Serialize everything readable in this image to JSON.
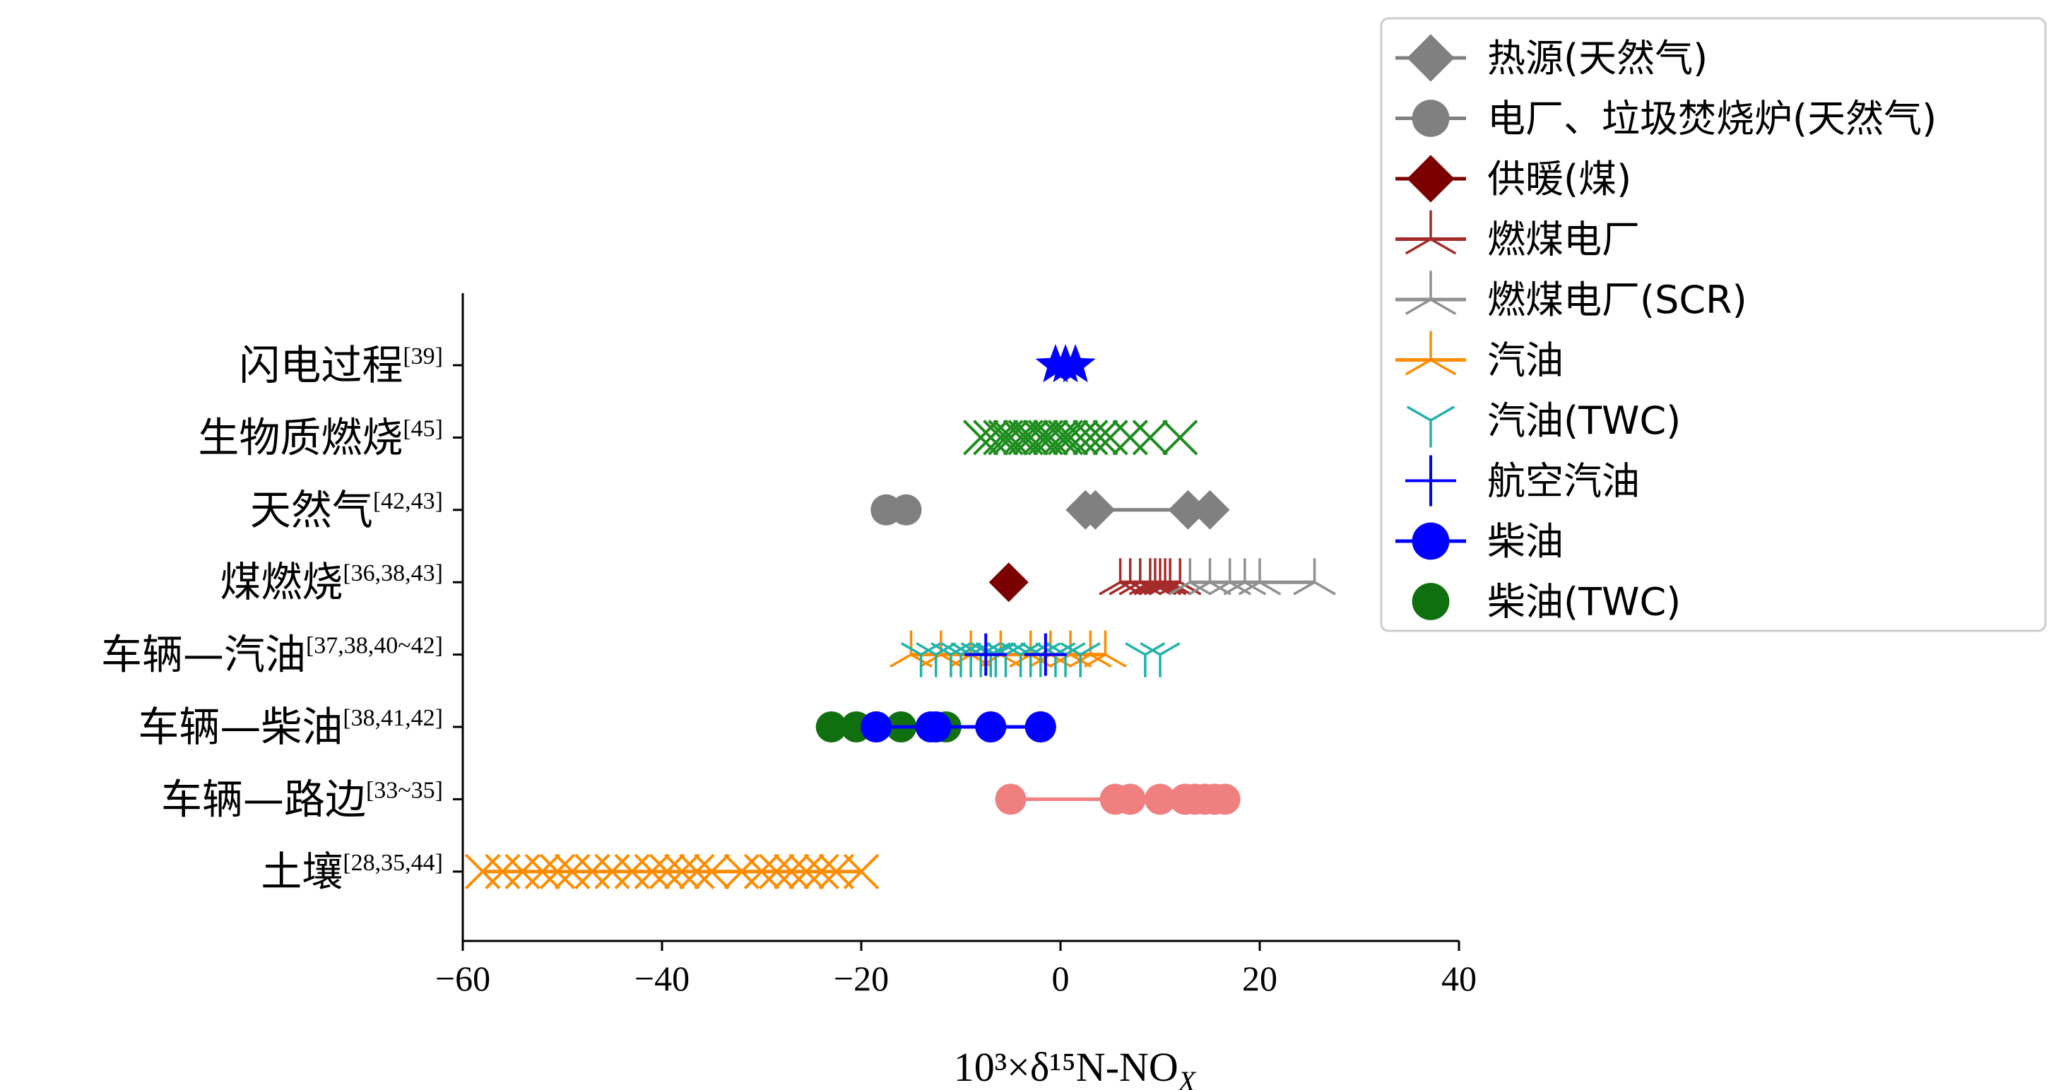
{
  "chart_data": {
    "type": "scatter",
    "xlabel": "10³×δ¹⁵N-NO",
    "xlabel_sub": "X",
    "xlim": [
      -60,
      40
    ],
    "xticks": [
      -60,
      -40,
      -20,
      0,
      20,
      40
    ],
    "xtick_labels": [
      "−60",
      "−40",
      "−20",
      "0",
      "20",
      "40"
    ],
    "categories": [
      {
        "label": "闪电过程",
        "ref": "[39]"
      },
      {
        "label": "生物质燃烧",
        "ref": "[45]"
      },
      {
        "label": "天然气",
        "ref": "[42,43]"
      },
      {
        "label": "煤燃烧",
        "ref": "[36,38,43]"
      },
      {
        "label": "车辆—汽油",
        "ref": "[37,38,40~42]"
      },
      {
        "label": "车辆—柴油",
        "ref": "[38,41,42]"
      },
      {
        "label": "车辆—路边",
        "ref": "[33~35]"
      },
      {
        "label": "土壤",
        "ref": "[28,35,44]"
      }
    ],
    "legend_position": "top-right",
    "legend": [
      {
        "label": "热源(天然气)",
        "color": "#808080",
        "marker": "diamond",
        "line": true
      },
      {
        "label": "电厂、垃圾焚烧炉(天然气)",
        "color": "#808080",
        "marker": "circle",
        "line": true
      },
      {
        "label": "供暖(煤)",
        "color": "#7b0000",
        "marker": "diamond",
        "line": true
      },
      {
        "label": "燃煤电厂",
        "color": "#a52a2a",
        "marker": "tri-star",
        "line": true
      },
      {
        "label": "燃煤电厂(SCR)",
        "color": "#909090",
        "marker": "tri-star",
        "line": true
      },
      {
        "label": "汽油",
        "color": "#ff8c00",
        "marker": "tri-star",
        "line": true
      },
      {
        "label": "汽油(TWC)",
        "color": "#20b2aa",
        "marker": "tri",
        "line": false
      },
      {
        "label": "航空汽油",
        "color": "#0000ff",
        "marker": "plus",
        "line": false
      },
      {
        "label": "柴油",
        "color": "#0000ff",
        "marker": "circle",
        "line": true
      },
      {
        "label": "柴油(TWC)",
        "color": "#107010",
        "marker": "circle",
        "line": false
      }
    ],
    "series": [
      {
        "category": "闪电过程",
        "marker": "star",
        "color": "#0000ff",
        "x": [
          -0.5,
          0.5,
          1.5
        ]
      },
      {
        "category": "生物质燃烧",
        "marker": "x",
        "color": "#1e8c1e",
        "x": [
          -8,
          -7,
          -6,
          -5.5,
          -5,
          -4,
          -3.5,
          -3,
          -2,
          -1.5,
          -1,
          0,
          0.5,
          1,
          2,
          3,
          4,
          5,
          7,
          9,
          12
        ]
      },
      {
        "category": "天然气",
        "name": "电厂、垃圾焚烧炉(天然气)",
        "marker": "circle",
        "color": "#808080",
        "line": false,
        "x": [
          -17.5,
          -15.5
        ]
      },
      {
        "category": "天然气",
        "name": "热源(天然气)",
        "marker": "diamond",
        "color": "#808080",
        "line": true,
        "x": [
          2.5,
          3.5,
          12.8,
          15
        ]
      },
      {
        "category": "煤燃烧",
        "name": "供暖(煤)",
        "marker": "diamond",
        "color": "#7b0000",
        "line": false,
        "x": [
          -5.2
        ]
      },
      {
        "category": "煤燃烧",
        "name": "燃煤电厂",
        "marker": "tri-star",
        "color": "#a52a2a",
        "line": true,
        "x": [
          6,
          7,
          8,
          9,
          9.5,
          10,
          10.5,
          11,
          12
        ]
      },
      {
        "category": "煤燃烧",
        "name": "燃煤电厂(SCR)",
        "marker": "tri-star",
        "color": "#909090",
        "line": true,
        "x": [
          13,
          15,
          17,
          18.5,
          20,
          25.5
        ]
      },
      {
        "category": "车辆—汽油",
        "name": "汽油",
        "marker": "tri-star",
        "color": "#ff8c00",
        "line": true,
        "x": [
          -15,
          -12,
          -9,
          -6,
          -3,
          -1,
          1,
          3,
          4.5
        ]
      },
      {
        "category": "车辆—汽油",
        "name": "汽油(TWC)",
        "marker": "tri",
        "color": "#20b2aa",
        "line": false,
        "x": [
          -14,
          -12.5,
          -11,
          -10,
          -9,
          -8,
          -7,
          -6.5,
          -5.5,
          -4,
          -3,
          -2,
          -0.5,
          0.5,
          2,
          8.5,
          10
        ]
      },
      {
        "category": "车辆—汽油",
        "name": "航空汽油",
        "marker": "plus",
        "color": "#0000ff",
        "line": false,
        "x": [
          -7.5,
          -1.5
        ]
      },
      {
        "category": "车辆—柴油",
        "name": "柴油(TWC)",
        "marker": "circle",
        "color": "#107010",
        "line": false,
        "x": [
          -23,
          -20.5,
          -18.5,
          -16,
          -11.5,
          -2
        ]
      },
      {
        "category": "车辆—柴油",
        "name": "柴油",
        "marker": "circle",
        "color": "#0000ff",
        "line": true,
        "x": [
          -18.5,
          -13,
          -12.5,
          -7,
          -2
        ]
      },
      {
        "category": "车辆—路边",
        "marker": "circle",
        "color": "#f08080",
        "line": true,
        "x": [
          -5,
          5.5,
          7,
          10,
          12.5,
          13.5,
          14.5,
          15.5,
          16.5
        ]
      },
      {
        "category": "土壤",
        "marker": "x",
        "color": "#ff8c00",
        "line": true,
        "x": [
          -58,
          -56,
          -54,
          -52,
          -50.5,
          -49,
          -47,
          -45,
          -43,
          -41,
          -39.5,
          -38,
          -36.5,
          -35,
          -32,
          -30,
          -28.5,
          -27,
          -25.5,
          -24,
          -22.5,
          -20
        ]
      }
    ]
  }
}
